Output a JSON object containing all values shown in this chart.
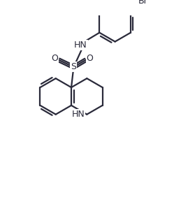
{
  "background_color": "#ffffff",
  "line_color": "#2a2a3a",
  "bond_lw": 1.6,
  "figsize": [
    2.49,
    2.89
  ],
  "dpi": 100,
  "xlim": [
    -1,
    10
  ],
  "ylim": [
    -0.5,
    11
  ]
}
